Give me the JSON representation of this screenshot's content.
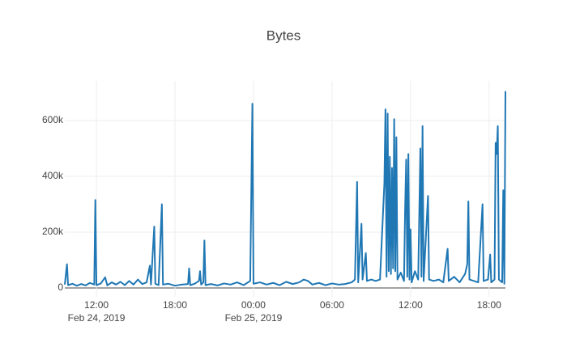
{
  "chart_data": {
    "type": "line",
    "title": "Bytes",
    "x": [
      "2019-02-24 09:35",
      "2019-02-24 09:45",
      "2019-02-24 09:50",
      "2019-02-24 10:10",
      "2019-02-24 10:30",
      "2019-02-24 10:50",
      "2019-02-24 11:10",
      "2019-02-24 11:30",
      "2019-02-24 11:50",
      "2019-02-24 11:55",
      "2019-02-24 12:00",
      "2019-02-24 12:20",
      "2019-02-24 12:40",
      "2019-02-24 12:50",
      "2019-02-24 13:10",
      "2019-02-24 13:30",
      "2019-02-24 13:50",
      "2019-02-24 14:10",
      "2019-02-24 14:30",
      "2019-02-24 14:50",
      "2019-02-24 15:10",
      "2019-02-24 15:30",
      "2019-02-24 15:50",
      "2019-02-24 16:05",
      "2019-02-24 16:10",
      "2019-02-24 16:25",
      "2019-02-24 16:30",
      "2019-02-24 16:45",
      "2019-02-24 17:00",
      "2019-02-24 17:05",
      "2019-02-24 17:30",
      "2019-02-24 18:00",
      "2019-02-24 18:30",
      "2019-02-24 19:00",
      "2019-02-24 19:05",
      "2019-02-24 19:10",
      "2019-02-24 19:30",
      "2019-02-24 19:50",
      "2019-02-24 19:55",
      "2019-02-24 20:00",
      "2019-02-24 20:10",
      "2019-02-24 20:15",
      "2019-02-24 20:20",
      "2019-02-24 20:45",
      "2019-02-24 21:15",
      "2019-02-24 21:45",
      "2019-02-24 22:15",
      "2019-02-24 22:45",
      "2019-02-24 23:15",
      "2019-02-24 23:45",
      "2019-02-24 23:55",
      "2019-02-25 00:00",
      "2019-02-25 00:30",
      "2019-02-25 01:00",
      "2019-02-25 01:30",
      "2019-02-25 02:00",
      "2019-02-25 02:30",
      "2019-02-25 03:00",
      "2019-02-25 03:30",
      "2019-02-25 03:50",
      "2019-02-25 04:10",
      "2019-02-25 04:30",
      "2019-02-25 05:00",
      "2019-02-25 05:30",
      "2019-02-25 06:00",
      "2019-02-25 06:30",
      "2019-02-25 07:00",
      "2019-02-25 07:30",
      "2019-02-25 07:45",
      "2019-02-25 07:55",
      "2019-02-25 08:00",
      "2019-02-25 08:15",
      "2019-02-25 08:20",
      "2019-02-25 08:35",
      "2019-02-25 08:40",
      "2019-02-25 09:00",
      "2019-02-25 09:20",
      "2019-02-25 09:40",
      "2019-02-25 10:00",
      "2019-02-25 10:05",
      "2019-02-25 10:10",
      "2019-02-25 10:15",
      "2019-02-25 10:20",
      "2019-02-25 10:25",
      "2019-02-25 10:30",
      "2019-02-25 10:35",
      "2019-02-25 10:40",
      "2019-02-25 10:45",
      "2019-02-25 10:50",
      "2019-02-25 10:55",
      "2019-02-25 11:00",
      "2019-02-25 11:15",
      "2019-02-25 11:30",
      "2019-02-25 11:35",
      "2019-02-25 11:40",
      "2019-02-25 11:45",
      "2019-02-25 11:50",
      "2019-02-25 11:55",
      "2019-02-25 12:00",
      "2019-02-25 12:05",
      "2019-02-25 12:20",
      "2019-02-25 12:35",
      "2019-02-25 12:45",
      "2019-02-25 12:50",
      "2019-02-25 12:55",
      "2019-02-25 13:00",
      "2019-02-25 13:20",
      "2019-02-25 13:25",
      "2019-02-25 13:45",
      "2019-02-25 14:10",
      "2019-02-25 14:30",
      "2019-02-25 14:50",
      "2019-02-25 14:55",
      "2019-02-25 15:20",
      "2019-02-25 15:45",
      "2019-02-25 16:10",
      "2019-02-25 16:20",
      "2019-02-25 16:25",
      "2019-02-25 16:30",
      "2019-02-25 16:50",
      "2019-02-25 17:10",
      "2019-02-25 17:30",
      "2019-02-25 17:35",
      "2019-02-25 17:55",
      "2019-02-25 18:05",
      "2019-02-25 18:10",
      "2019-02-25 18:25",
      "2019-02-25 18:30",
      "2019-02-25 18:35",
      "2019-02-25 18:40",
      "2019-02-25 18:45",
      "2019-02-25 19:00",
      "2019-02-25 19:05",
      "2019-02-25 19:10",
      "2019-02-25 19:15"
    ],
    "series": [
      {
        "name": "Bytes",
        "color": "#1f77b4",
        "values": [
          12000,
          85000,
          10000,
          15000,
          8000,
          14000,
          9000,
          18000,
          12000,
          315000,
          10000,
          16000,
          38000,
          9000,
          20000,
          12000,
          22000,
          10000,
          25000,
          12000,
          30000,
          14000,
          20000,
          80000,
          12000,
          220000,
          15000,
          10000,
          300000,
          12000,
          15000,
          8000,
          12000,
          14000,
          70000,
          10000,
          15000,
          25000,
          60000,
          12000,
          20000,
          170000,
          10000,
          14000,
          9000,
          16000,
          12000,
          20000,
          10000,
          25000,
          660000,
          15000,
          20000,
          12000,
          18000,
          10000,
          22000,
          14000,
          20000,
          30000,
          25000,
          12000,
          18000,
          10000,
          16000,
          12000,
          14000,
          20000,
          30000,
          380000,
          20000,
          230000,
          30000,
          125000,
          25000,
          30000,
          25000,
          30000,
          375000,
          640000,
          40000,
          625000,
          60000,
          470000,
          50000,
          430000,
          70000,
          605000,
          60000,
          540000,
          30000,
          55000,
          25000,
          280000,
          460000,
          40000,
          480000,
          30000,
          210000,
          20000,
          60000,
          30000,
          500000,
          40000,
          580000,
          25000,
          330000,
          30000,
          25000,
          30000,
          20000,
          140000,
          25000,
          40000,
          20000,
          50000,
          85000,
          310000,
          30000,
          25000,
          20000,
          300000,
          25000,
          30000,
          120000,
          20000,
          30000,
          520000,
          480000,
          580000,
          30000,
          20000,
          350000,
          15000,
          705000
        ]
      }
    ],
    "xlim": [
      "2019-02-24 09:35",
      "2019-02-25 19:15"
    ],
    "xticks": [
      {
        "value": "2019-02-24 12:00",
        "label": [
          "12:00",
          "Feb 24, 2019"
        ]
      },
      {
        "value": "2019-02-24 18:00",
        "label": [
          "18:00"
        ]
      },
      {
        "value": "2019-02-25 00:00",
        "label": [
          "00:00",
          "Feb 25, 2019"
        ]
      },
      {
        "value": "2019-02-25 06:00",
        "label": [
          "06:00"
        ]
      },
      {
        "value": "2019-02-25 12:00",
        "label": [
          "12:00"
        ]
      },
      {
        "value": "2019-02-25 18:00",
        "label": [
          "18:00"
        ]
      }
    ],
    "ylim": [
      -32000,
      742000
    ],
    "yticks": [
      0,
      {
        "value": 200000,
        "label": "200k"
      },
      {
        "value": 400000,
        "label": "400k"
      },
      {
        "value": 600000,
        "label": "600k"
      }
    ],
    "grid": true
  }
}
